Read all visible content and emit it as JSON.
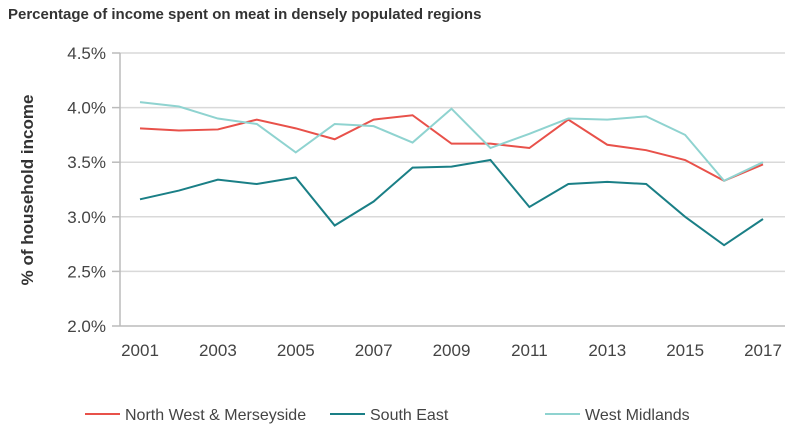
{
  "chart_data": {
    "type": "line",
    "title": "Percentage of income spent on meat in densely populated regions",
    "xlabel": "",
    "ylabel": "% of household income",
    "ylim": [
      2.0,
      4.5
    ],
    "yticks": [
      "2.0%",
      "2.5%",
      "3.0%",
      "3.5%",
      "4.0%",
      "4.5%"
    ],
    "ytick_values": [
      2.0,
      2.5,
      3.0,
      3.5,
      4.0,
      4.5
    ],
    "x": [
      2001,
      2002,
      2003,
      2004,
      2005,
      2006,
      2007,
      2008,
      2009,
      2010,
      2011,
      2012,
      2013,
      2014,
      2015,
      2016,
      2017
    ],
    "xticks": [
      "2001",
      "2003",
      "2005",
      "2007",
      "2009",
      "2011",
      "2013",
      "2015",
      "2017"
    ],
    "grid": true,
    "legend_position": "bottom",
    "series": [
      {
        "name": "North West & Merseyside",
        "color": "#e8514a",
        "values": [
          3.81,
          3.79,
          3.8,
          3.89,
          3.81,
          3.71,
          3.89,
          3.93,
          3.67,
          3.67,
          3.63,
          3.89,
          3.66,
          3.61,
          3.52,
          3.33,
          3.48
        ]
      },
      {
        "name": "South East",
        "color": "#1a7f86",
        "values": [
          3.16,
          3.24,
          3.34,
          3.3,
          3.36,
          2.92,
          3.14,
          3.45,
          3.46,
          3.52,
          3.09,
          3.3,
          3.32,
          3.3,
          3.0,
          2.74,
          2.98
        ]
      },
      {
        "name": "West Midlands",
        "color": "#8fd3d0",
        "values": [
          4.05,
          4.01,
          3.9,
          3.85,
          3.59,
          3.85,
          3.83,
          3.68,
          3.99,
          3.63,
          3.76,
          3.9,
          3.89,
          3.92,
          3.75,
          3.33,
          3.5
        ]
      }
    ]
  }
}
